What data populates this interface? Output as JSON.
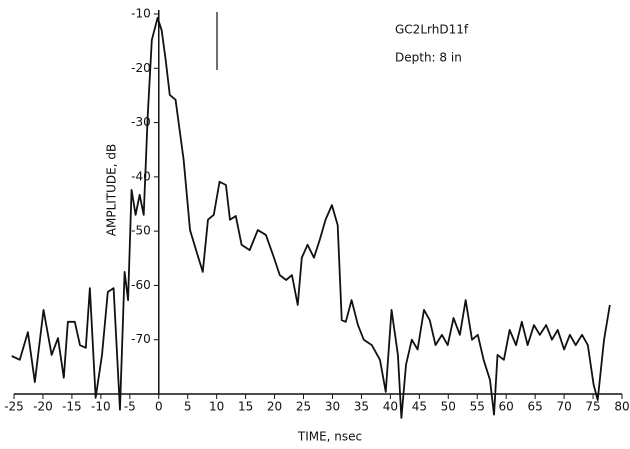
{
  "chart_data": {
    "type": "line",
    "annotations": [
      "GC2LrhD11f",
      "Depth:  8 in"
    ],
    "xlabel": "TIME, nsec",
    "ylabel": "AMPLITUDE, dB",
    "x": [
      -25.4,
      -24,
      -22.6,
      -21.4,
      -19.9,
      -18.5,
      -17.4,
      -16.4,
      -15.7,
      -14.5,
      -13.6,
      -12.6,
      -11.9,
      -10.9,
      -9.8,
      -8.8,
      -7.8,
      -6.7,
      -5.9,
      -5.3,
      -4.7,
      -4,
      -3.3,
      -2.6,
      -1.9,
      -1.2,
      -0.2,
      0.5,
      1.2,
      1.9,
      2.9,
      4.3,
      5.4,
      6.7,
      7.6,
      8.5,
      9.5,
      10.5,
      11.6,
      12.3,
      13.3,
      14.3,
      15.7,
      17.1,
      18.5,
      19.9,
      20.9,
      22,
      23,
      24,
      24.7,
      25.7,
      26.8,
      27.8,
      28.8,
      29.9,
      30.9,
      31.6,
      32.3,
      33.3,
      34.4,
      35.4,
      36.8,
      38.2,
      39.2,
      40.2,
      41.3,
      41.9,
      42.7,
      43.7,
      44.7,
      45.8,
      46.8,
      47.8,
      48.9,
      49.9,
      50.9,
      52,
      53,
      54.1,
      55.1,
      56.1,
      57.2,
      57.9,
      58.5,
      59.6,
      60.6,
      61.7,
      62.7,
      63.7,
      64.8,
      65.8,
      66.9,
      67.9,
      68.9,
      70,
      71,
      72,
      73.1,
      74.1,
      75.1,
      75.8,
      76.9,
      77.9
    ],
    "values": [
      -73,
      -73.7,
      -68.6,
      -77.8,
      -64.5,
      -72.8,
      -69.7,
      -77,
      -66.7,
      -66.7,
      -71,
      -71.5,
      -60.5,
      -80.7,
      -72.8,
      -61.2,
      -60.5,
      -82.9,
      -57.5,
      -62.7,
      -42.4,
      -47,
      -43.3,
      -47,
      -28.6,
      -14.8,
      -10.7,
      -13,
      -18.5,
      -24.9,
      -25.8,
      -36.9,
      -49.8,
      -54.4,
      -57.5,
      -47.9,
      -47,
      -40.9,
      -41.5,
      -47.9,
      -47.2,
      -52.5,
      -53.5,
      -49.8,
      -50.7,
      -54.9,
      -58.1,
      -59,
      -58.1,
      -63.6,
      -54.9,
      -52.5,
      -54.9,
      -51.6,
      -47.9,
      -45.2,
      -48.9,
      -66.4,
      -66.7,
      -62.7,
      -67.3,
      -70,
      -71,
      -73.7,
      -79.6,
      -64.5,
      -72.8,
      -84.4,
      -74.6,
      -70,
      -71.8,
      -64.5,
      -66.4,
      -71,
      -69.1,
      -71,
      -66,
      -69.1,
      -62.7,
      -70,
      -69.1,
      -73.7,
      -77.4,
      -83.8,
      -72.8,
      -73.7,
      -68.2,
      -71,
      -66.7,
      -71,
      -67.3,
      -69.1,
      -67.3,
      -70,
      -68.2,
      -71.8,
      -69.1,
      -71,
      -69.1,
      -71,
      -78.3,
      -81.1,
      -70,
      -63.6
    ],
    "color": "#111111",
    "xlim": [
      -25,
      80
    ],
    "xticks": [
      -25,
      -20,
      -15,
      -10,
      -5,
      0,
      5,
      10,
      15,
      20,
      25,
      30,
      35,
      40,
      45,
      50,
      55,
      60,
      65,
      70,
      75,
      80
    ],
    "ylim": [
      -80,
      -10
    ],
    "yticks": [
      -10,
      -20,
      -30,
      -40,
      -50,
      -60,
      -70
    ]
  }
}
